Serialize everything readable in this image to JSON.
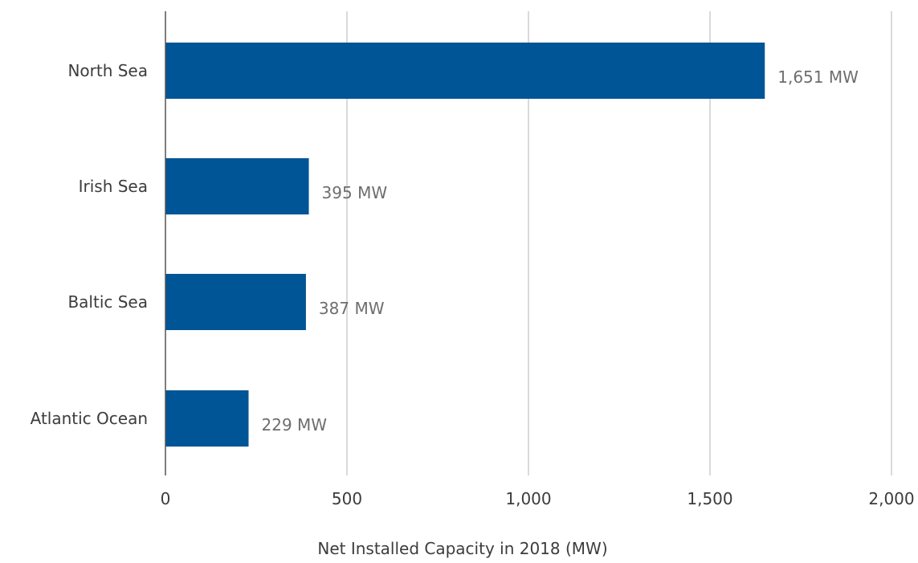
{
  "chart_data": {
    "type": "bar",
    "orientation": "horizontal",
    "categories": [
      "North Sea",
      "Irish Sea",
      "Baltic Sea",
      "Atlantic Ocean"
    ],
    "values": [
      1651,
      395,
      387,
      229
    ],
    "value_labels": [
      "1,651 MW",
      "395 MW",
      "387 MW",
      "229 MW"
    ],
    "xlabel": "Net Installed Capacity in 2018 (MW)",
    "ylabel": "",
    "xlim": [
      0,
      2000
    ],
    "xticks": [
      0,
      500,
      1000,
      1500,
      2000
    ],
    "xtick_labels": [
      "0",
      "500",
      "1,000",
      "1,500",
      "2,000"
    ],
    "grid": "vertical",
    "legend": "none",
    "colors": {
      "bar": "#005596",
      "grid": "#b4b4b4",
      "axis": "#555555"
    }
  }
}
